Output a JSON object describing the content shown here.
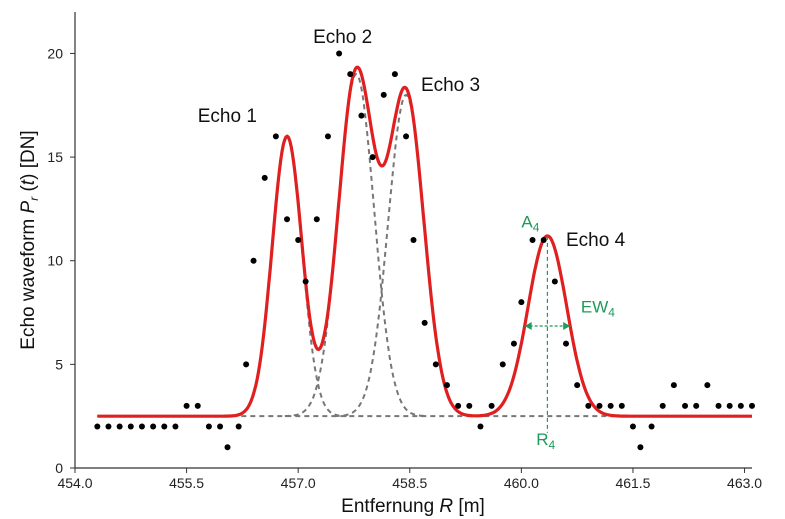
{
  "chart_data": {
    "type": "line",
    "title": "",
    "xlabel": "Entfernung R  [m]",
    "xlabel_parts": [
      "Entfernung ",
      "R",
      "  [m]"
    ],
    "ylabel": "Echo waveform P_r (t)  [DN]",
    "ylabel_parts": [
      "Echo waveform ",
      "P",
      "r",
      " (",
      "t",
      ")  [DN]"
    ],
    "xlim": [
      454.0,
      463.1
    ],
    "ylim": [
      0,
      22
    ],
    "xticks": [
      454.0,
      455.5,
      457.0,
      458.5,
      460.0,
      461.5,
      463.0
    ],
    "xtick_labels": [
      "454.0",
      "455.5",
      "457.0",
      "458.5",
      "460.0",
      "461.5",
      "463.0"
    ],
    "yticks": [
      0,
      5,
      10,
      15,
      20
    ],
    "ytick_labels": [
      "0",
      "5",
      "10",
      "15",
      "20"
    ],
    "grid": false,
    "colors": {
      "fit": "#e02020",
      "components": "#777777",
      "samples": "#000000",
      "annotation": "#1e9a5a"
    },
    "baseline": 2.5,
    "echoes": [
      {
        "label": "Echo 1",
        "center": 456.85,
        "amplitude": 13.5,
        "sigma": 0.2,
        "label_x": 455.65,
        "label_y": 16.7
      },
      {
        "label": "Echo 2",
        "center": 457.78,
        "amplitude": 16.5,
        "sigma": 0.24,
        "label_x": 457.2,
        "label_y": 20.5
      },
      {
        "label": "Echo 3",
        "center": 458.45,
        "amplitude": 15.5,
        "sigma": 0.24,
        "label_x": 458.65,
        "label_y": 18.2
      },
      {
        "label": "Echo 4",
        "center": 460.35,
        "amplitude": 8.7,
        "sigma": 0.26,
        "label_x": 460.6,
        "label_y": 10.7
      }
    ],
    "series": [
      {
        "kind": "samples",
        "x": [
          454.3,
          454.45,
          454.6,
          454.75,
          454.9,
          455.05,
          455.2,
          455.35,
          455.5,
          455.65,
          455.8,
          455.95,
          456.05,
          456.2,
          456.3,
          456.4,
          456.55,
          456.7,
          456.85,
          457.0,
          457.1,
          457.25,
          457.4,
          457.55,
          457.7,
          457.85,
          458.0,
          458.15,
          458.3,
          458.45,
          458.55,
          458.7,
          458.85,
          459.0,
          459.15,
          459.3,
          459.45,
          459.6,
          459.75,
          459.9,
          460.0,
          460.15,
          460.3,
          460.45,
          460.6,
          460.75,
          460.9,
          461.05,
          461.2,
          461.35,
          461.5,
          461.6,
          461.75,
          461.9,
          462.05,
          462.2,
          462.35,
          462.5,
          462.65,
          462.8,
          462.95,
          463.1
        ],
        "y": [
          2,
          2,
          2,
          2,
          2,
          2,
          2,
          2,
          3,
          3,
          2,
          2,
          1,
          2,
          5,
          10,
          14,
          16,
          12,
          11,
          9,
          12,
          16,
          20,
          19,
          17,
          15,
          18,
          19,
          16,
          11,
          7,
          5,
          4,
          3,
          3,
          2,
          3,
          5,
          6,
          8,
          11,
          11,
          9,
          6,
          4,
          3,
          3,
          3,
          3,
          2,
          1,
          2,
          3,
          4,
          3,
          3,
          4,
          3,
          3,
          3,
          3
        ]
      }
    ],
    "annotations": {
      "amplitude": {
        "text": "A",
        "sub": "4",
        "x": 460.0,
        "y": 11.6
      },
      "width": {
        "text": "EW",
        "sub": "4",
        "x": 460.8,
        "y": 7.5
      },
      "range": {
        "text": "R",
        "sub": "4",
        "x": 460.2,
        "y": 1.1
      }
    }
  }
}
